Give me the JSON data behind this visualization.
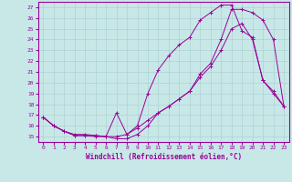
{
  "title": "",
  "xlabel": "Windchill (Refroidissement éolien,°C)",
  "ylabel": "",
  "bg_color": "#c8e8e8",
  "line_color": "#990099",
  "grid_color": "#aacccc",
  "xlim": [
    -0.5,
    23.5
  ],
  "ylim": [
    14.5,
    27.5
  ],
  "yticks": [
    15,
    16,
    17,
    18,
    19,
    20,
    21,
    22,
    23,
    24,
    25,
    26,
    27
  ],
  "xticks": [
    0,
    1,
    2,
    3,
    4,
    5,
    6,
    7,
    8,
    9,
    10,
    11,
    12,
    13,
    14,
    15,
    16,
    17,
    18,
    19,
    20,
    21,
    22,
    23
  ],
  "curve1_x": [
    0,
    1,
    2,
    3,
    4,
    5,
    6,
    7,
    8,
    9,
    10,
    11,
    12,
    13,
    14,
    15,
    16,
    17,
    18,
    19,
    20,
    21,
    22,
    23
  ],
  "curve1_y": [
    16.8,
    16.0,
    15.5,
    15.1,
    15.1,
    15.1,
    15.0,
    15.0,
    15.2,
    15.8,
    16.5,
    17.2,
    17.8,
    18.5,
    19.2,
    20.5,
    21.5,
    23.0,
    25.0,
    25.5,
    24.0,
    20.2,
    19.2,
    17.8
  ],
  "curve2_x": [
    0,
    1,
    2,
    3,
    4,
    5,
    6,
    7,
    8,
    9,
    10,
    11,
    12,
    13,
    14,
    15,
    16,
    17,
    18,
    19,
    20,
    21,
    22,
    23
  ],
  "curve2_y": [
    16.8,
    16.0,
    15.5,
    15.1,
    15.1,
    15.0,
    15.0,
    17.2,
    15.2,
    16.0,
    19.0,
    21.2,
    22.5,
    23.5,
    24.2,
    25.8,
    26.5,
    27.2,
    27.2,
    24.8,
    24.2,
    20.2,
    19.0,
    17.8
  ],
  "curve3_x": [
    0,
    1,
    2,
    3,
    4,
    5,
    6,
    7,
    8,
    9,
    10,
    11,
    12,
    13,
    14,
    15,
    16,
    17,
    18,
    19,
    20,
    21,
    22,
    23
  ],
  "curve3_y": [
    16.8,
    16.0,
    15.5,
    15.2,
    15.2,
    15.1,
    15.0,
    14.8,
    14.8,
    15.2,
    16.0,
    17.2,
    17.8,
    18.5,
    19.2,
    20.8,
    21.8,
    24.0,
    26.8,
    26.8,
    26.5,
    25.8,
    24.0,
    17.8
  ]
}
